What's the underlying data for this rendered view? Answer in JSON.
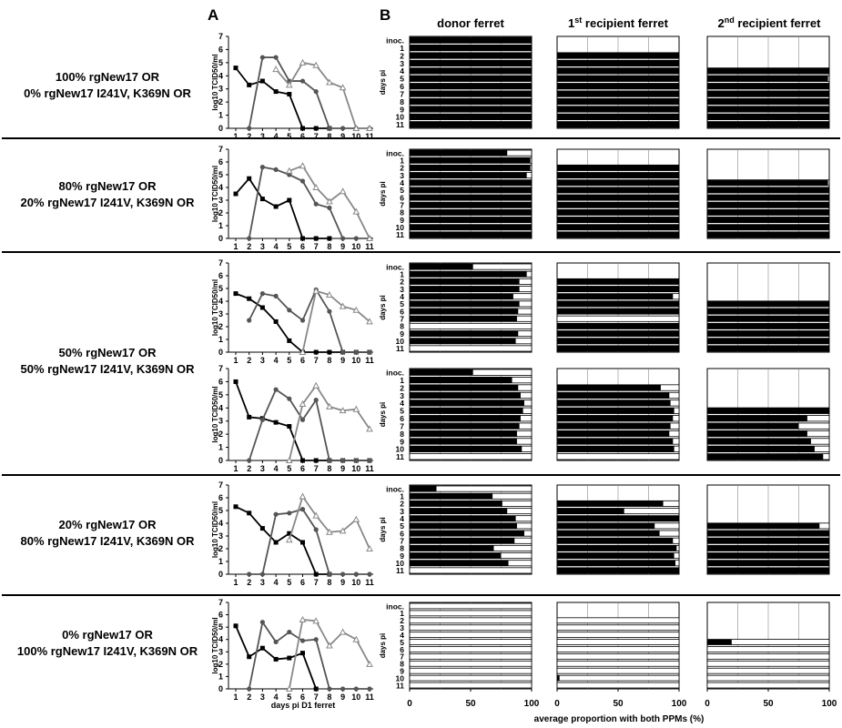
{
  "panels": {
    "a": "A",
    "b": "B"
  },
  "columns": [
    {
      "key": "donor",
      "label": "donor ferret"
    },
    {
      "key": "r1",
      "base": "1",
      "sup": "st",
      "rest": " recipient ferret"
    },
    {
      "key": "r2",
      "base": "2",
      "sup": "nd",
      "rest": " recipient ferret"
    }
  ],
  "groups": [
    {
      "line1": "100% rgNew17 OR",
      "line2": "0% rgNew17 I241V, K369N OR"
    },
    {
      "line1": "80% rgNew17 OR",
      "line2": "20% rgNew17 I241V, K369N OR"
    },
    {
      "line1": "50% rgNew17 OR",
      "line2": "50% rgNew17 I241V, K369N OR"
    },
    {
      "line1": "20% rgNew17 OR",
      "line2": "80% rgNew17 I241V, K369N OR"
    },
    {
      "line1": "0% rgNew17 OR",
      "line2": "100% rgNew17 I241V, K369N OR"
    }
  ],
  "labels": {
    "ylabel_a": "log10 TCID50/ml",
    "xlabel_a": "days pi D1 ferret",
    "ylabel_b": "days pi",
    "xlabel_b": "average proportion with both PPMs (%)",
    "xticks_b": [
      "0",
      "50",
      "100"
    ],
    "row_labels_b": [
      "inoc.",
      "1",
      "2",
      "3",
      "4",
      "5",
      "6",
      "7",
      "8",
      "9",
      "10",
      "11"
    ]
  },
  "colors": {
    "donor": "#000000",
    "recipient1": "#555555",
    "recipient2": "#888888",
    "bar": "#000000"
  },
  "chart_data": [
    {
      "type": "line",
      "panel": "A",
      "ylabel": "log10 TCID50/ml",
      "xlabel": "days pi D1 ferret",
      "x": [
        1,
        2,
        3,
        4,
        5,
        6,
        7,
        8,
        9,
        10,
        11
      ],
      "xlim": [
        1,
        11
      ],
      "ylim": [
        0,
        7
      ],
      "series": [
        {
          "values": [
            [
              4.6,
              3.3,
              3.6,
              2.8,
              2.6,
              0,
              0,
              0,
              null,
              null,
              null
            ],
            [
              3.5,
              4.7,
              3.1,
              2.5,
              3.0,
              0,
              0,
              0,
              null,
              null,
              null
            ],
            [
              4.6,
              4.2,
              3.5,
              2.4,
              0.9,
              0,
              0,
              0,
              0,
              0,
              0
            ],
            [
              6.0,
              3.3,
              3.2,
              2.9,
              2.6,
              0,
              0,
              0,
              0,
              0,
              0
            ],
            [
              5.3,
              4.8,
              3.6,
              2.5,
              3.2,
              2.5,
              0,
              0,
              null,
              null,
              null
            ],
            [
              5.1,
              2.6,
              3.3,
              2.4,
              2.5,
              2.9,
              0,
              null,
              null,
              null,
              null
            ]
          ]
        },
        {
          "values": [
            [
              null,
              0,
              5.4,
              5.4,
              3.6,
              3.6,
              2.8,
              0,
              0,
              0,
              0
            ],
            [
              null,
              0,
              5.6,
              5.4,
              5.0,
              4.5,
              2.7,
              2.4,
              0,
              0,
              0
            ],
            [
              null,
              2.5,
              4.6,
              4.4,
              3.3,
              2.5,
              4.9,
              3.2,
              0,
              0,
              0
            ],
            [
              null,
              0,
              3.1,
              5.4,
              4.7,
              3.1,
              4.6,
              0,
              0,
              0,
              0
            ],
            [
              null,
              0,
              0,
              4.7,
              4.8,
              5.1,
              3.5,
              0,
              0,
              0,
              0
            ],
            [
              null,
              0,
              5.4,
              3.8,
              4.6,
              3.9,
              4.0,
              0,
              0,
              0,
              0
            ]
          ]
        },
        {
          "values": [
            [
              null,
              null,
              null,
              4.5,
              3.3,
              5.0,
              4.8,
              3.5,
              3.1,
              0,
              0
            ],
            [
              null,
              null,
              null,
              null,
              5.3,
              5.7,
              4.0,
              2.9,
              3.7,
              2.1,
              0
            ],
            [
              null,
              null,
              null,
              null,
              null,
              0,
              4.8,
              4.5,
              3.6,
              3.3,
              2.4
            ],
            [
              null,
              null,
              null,
              null,
              0,
              4.3,
              5.7,
              4.1,
              3.8,
              3.9,
              2.4
            ],
            [
              null,
              null,
              null,
              null,
              2.7,
              6.1,
              4.6,
              3.3,
              3.4,
              4.3,
              2.0
            ],
            [
              null,
              null,
              null,
              null,
              0,
              5.6,
              5.5,
              3.5,
              4.6,
              4.0,
              2.0
            ]
          ]
        }
      ]
    },
    {
      "type": "bar",
      "panel": "B",
      "orientation": "horizontal",
      "ylabel": "days pi",
      "xlabel": "average proportion with both PPMs (%)",
      "categories": [
        "inoc.",
        "1",
        "2",
        "3",
        "4",
        "5",
        "6",
        "7",
        "8",
        "9",
        "10",
        "11"
      ],
      "xlim": [
        0,
        100
      ],
      "series": [
        {
          "values": [
            [
              100,
              100,
              100,
              100,
              100,
              100,
              100,
              100,
              100,
              100,
              100,
              100
            ],
            [
              80,
              99,
              99,
              96,
              100,
              100,
              100,
              100,
              100,
              100,
              100,
              100
            ],
            [
              52,
              96,
              90,
              90,
              85,
              90,
              89,
              88,
              0,
              89,
              87,
              0
            ],
            [
              52,
              84,
              89,
              91,
              94,
              93,
              91,
              90,
              88,
              88,
              92,
              0
            ],
            [
              22,
              68,
              76,
              80,
              87,
              88,
              94,
              86,
              69,
              75,
              81,
              0
            ],
            [
              0,
              0,
              0,
              0,
              0,
              0,
              0,
              0,
              0,
              0,
              0,
              0
            ]
          ]
        },
        {
          "values": [
            [
              null,
              null,
              100,
              100,
              100,
              100,
              100,
              100,
              100,
              100,
              100,
              100
            ],
            [
              null,
              null,
              100,
              100,
              100,
              100,
              100,
              100,
              100,
              100,
              100,
              100
            ],
            [
              null,
              null,
              100,
              100,
              95,
              100,
              100,
              0,
              100,
              100,
              100,
              100
            ],
            [
              null,
              null,
              85,
              92,
              93,
              96,
              95,
              93,
              92,
              95,
              96,
              0
            ],
            [
              null,
              null,
              87,
              55,
              100,
              80,
              84,
              95,
              98,
              96,
              97,
              100
            ],
            [
              null,
              null,
              0,
              0,
              0,
              0,
              0,
              0,
              0,
              0,
              2,
              0
            ]
          ]
        },
        {
          "values": [
            [
              null,
              null,
              null,
              null,
              100,
              99,
              100,
              100,
              100,
              100,
              100,
              100
            ],
            [
              null,
              null,
              null,
              null,
              99,
              100,
              100,
              100,
              100,
              100,
              100,
              100
            ],
            [
              null,
              null,
              null,
              null,
              null,
              100,
              100,
              100,
              100,
              100,
              100,
              100
            ],
            [
              null,
              null,
              null,
              null,
              null,
              100,
              82,
              75,
              82,
              85,
              88,
              95
            ],
            [
              null,
              null,
              null,
              null,
              null,
              92,
              100,
              100,
              100,
              100,
              100,
              100
            ],
            [
              null,
              null,
              null,
              null,
              null,
              20,
              0,
              0,
              0,
              0,
              0,
              0
            ]
          ]
        }
      ]
    }
  ]
}
